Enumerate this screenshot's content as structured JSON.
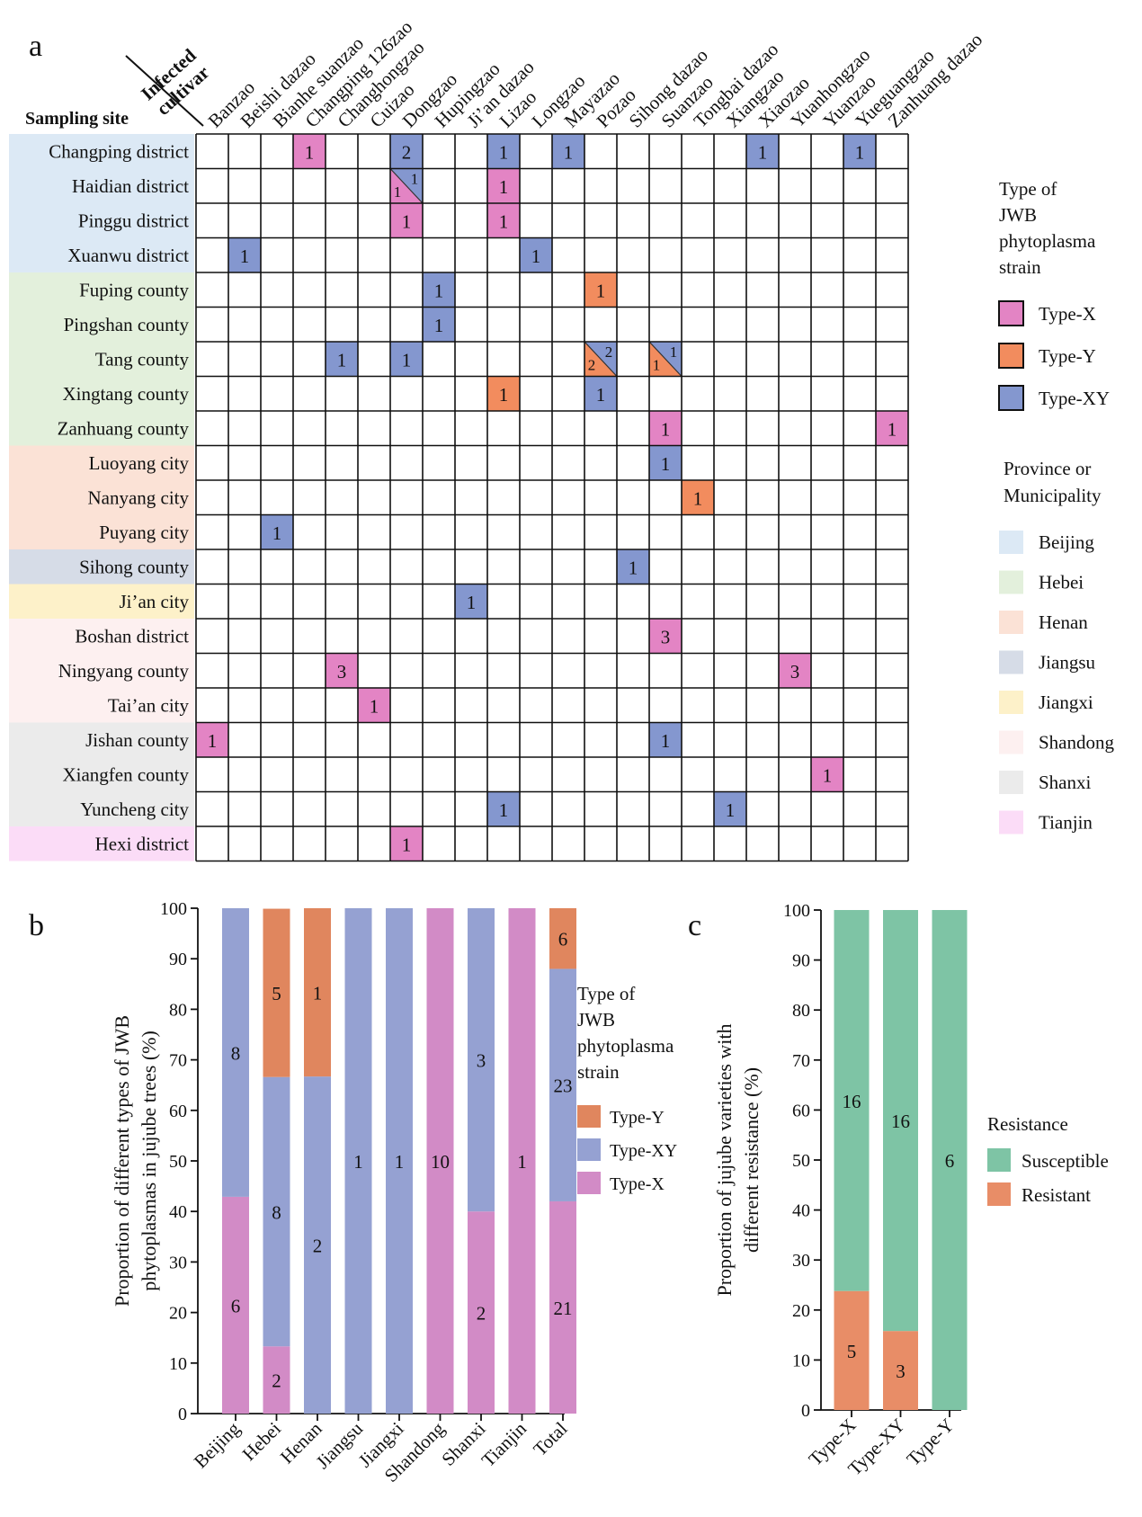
{
  "panel_labels": [
    "a",
    "b",
    "c"
  ],
  "colors": {
    "type_x": "#e384c4",
    "type_y": "#f28c5e",
    "type_xy": "#8497cf",
    "bar_x": "#d28bc6",
    "bar_y": "#e0865e",
    "bar_xy": "#95a1d2",
    "susceptible": "#7ec4a5",
    "resistant": "#e88d67"
  },
  "chart_data": [
    {
      "type": "heatmap",
      "panel": "a",
      "row_header": "Sampling site",
      "col_header": [
        "Infected",
        "cultivar"
      ],
      "columns": [
        "Banzao",
        "Beishi dazao",
        "Bianhe suanzao",
        "Changping 126zao",
        "Changhongzao",
        "Cuizao",
        "Dongzao",
        "Hupingzao",
        "Ji’an dazao",
        "Lizao",
        "Longzao",
        "Mayazao",
        "Pozao",
        "Sihong dazao",
        "Suanzao",
        "Tongbai dazao",
        "Xiangzao",
        "Xiaozao",
        "Yuanhongzao",
        "Yuanzao",
        "Yueguangzao",
        "Zanhuang dazao"
      ],
      "rows": [
        {
          "name": "Changping district",
          "group": "Beijing"
        },
        {
          "name": "Haidian district",
          "group": "Beijing"
        },
        {
          "name": "Pinggu district",
          "group": "Beijing"
        },
        {
          "name": "Xuanwu district",
          "group": "Beijing"
        },
        {
          "name": "Fuping county",
          "group": "Hebei"
        },
        {
          "name": "Pingshan county",
          "group": "Hebei"
        },
        {
          "name": "Tang county",
          "group": "Hebei"
        },
        {
          "name": "Xingtang county",
          "group": "Hebei"
        },
        {
          "name": "Zanhuang county",
          "group": "Hebei"
        },
        {
          "name": "Luoyang city",
          "group": "Henan"
        },
        {
          "name": "Nanyang city",
          "group": "Henan"
        },
        {
          "name": "Puyang city",
          "group": "Henan"
        },
        {
          "name": "Sihong county",
          "group": "Jiangsu"
        },
        {
          "name": "Ji’an city",
          "group": "Jiangxi"
        },
        {
          "name": "Boshan district",
          "group": "Shandong"
        },
        {
          "name": "Ningyang county",
          "group": "Shandong"
        },
        {
          "name": "Tai’an city",
          "group": "Shandong"
        },
        {
          "name": "Jishan county",
          "group": "Shanxi"
        },
        {
          "name": "Xiangfen county",
          "group": "Shanxi"
        },
        {
          "name": "Yuncheng city",
          "group": "Shanxi"
        },
        {
          "name": "Hexi district",
          "group": "Tianjin"
        }
      ],
      "cells": [
        {
          "row": 0,
          "col": 3,
          "type": "Type-X",
          "value": "1"
        },
        {
          "row": 0,
          "col": 6,
          "type": "Type-XY",
          "value": "2"
        },
        {
          "row": 0,
          "col": 9,
          "type": "Type-XY",
          "value": "1"
        },
        {
          "row": 0,
          "col": 11,
          "type": "Type-XY",
          "value": "1"
        },
        {
          "row": 0,
          "col": 17,
          "type": "Type-XY",
          "value": "1"
        },
        {
          "row": 0,
          "col": 20,
          "type": "Type-XY",
          "value": "1"
        },
        {
          "row": 1,
          "col": 6,
          "type": "split",
          "lower": "Type-X",
          "lower_value": "1",
          "upper": "Type-XY",
          "upper_value": "1"
        },
        {
          "row": 1,
          "col": 9,
          "type": "Type-X",
          "value": "1"
        },
        {
          "row": 2,
          "col": 6,
          "type": "Type-X",
          "value": "1"
        },
        {
          "row": 2,
          "col": 9,
          "type": "Type-X",
          "value": "1"
        },
        {
          "row": 3,
          "col": 1,
          "type": "Type-XY",
          "value": "1"
        },
        {
          "row": 3,
          "col": 10,
          "type": "Type-XY",
          "value": "1"
        },
        {
          "row": 4,
          "col": 7,
          "type": "Type-XY",
          "value": "1"
        },
        {
          "row": 4,
          "col": 12,
          "type": "Type-Y",
          "value": "1"
        },
        {
          "row": 5,
          "col": 7,
          "type": "Type-XY",
          "value": "1"
        },
        {
          "row": 6,
          "col": 4,
          "type": "Type-XY",
          "value": "1"
        },
        {
          "row": 6,
          "col": 6,
          "type": "Type-XY",
          "value": "1"
        },
        {
          "row": 6,
          "col": 12,
          "type": "split",
          "lower": "Type-Y",
          "lower_value": "2",
          "upper": "Type-XY",
          "upper_value": "2"
        },
        {
          "row": 6,
          "col": 14,
          "type": "split",
          "lower": "Type-Y",
          "lower_value": "1",
          "upper": "Type-XY",
          "upper_value": "1"
        },
        {
          "row": 7,
          "col": 9,
          "type": "Type-Y",
          "value": "1"
        },
        {
          "row": 7,
          "col": 12,
          "type": "Type-XY",
          "value": "1"
        },
        {
          "row": 8,
          "col": 14,
          "type": "Type-X",
          "value": "1"
        },
        {
          "row": 8,
          "col": 21,
          "type": "Type-X",
          "value": "1"
        },
        {
          "row": 9,
          "col": 14,
          "type": "Type-XY",
          "value": "1"
        },
        {
          "row": 10,
          "col": 15,
          "type": "Type-Y",
          "value": "1"
        },
        {
          "row": 11,
          "col": 2,
          "type": "Type-XY",
          "value": "1"
        },
        {
          "row": 12,
          "col": 13,
          "type": "Type-XY",
          "value": "1"
        },
        {
          "row": 13,
          "col": 8,
          "type": "Type-XY",
          "value": "1"
        },
        {
          "row": 14,
          "col": 14,
          "type": "Type-X",
          "value": "3"
        },
        {
          "row": 15,
          "col": 4,
          "type": "Type-X",
          "value": "3"
        },
        {
          "row": 15,
          "col": 18,
          "type": "Type-X",
          "value": "3"
        },
        {
          "row": 16,
          "col": 5,
          "type": "Type-X",
          "value": "1"
        },
        {
          "row": 17,
          "col": 0,
          "type": "Type-X",
          "value": "1"
        },
        {
          "row": 17,
          "col": 14,
          "type": "Type-XY",
          "value": "1"
        },
        {
          "row": 18,
          "col": 19,
          "type": "Type-X",
          "value": "1"
        },
        {
          "row": 19,
          "col": 9,
          "type": "Type-XY",
          "value": "1"
        },
        {
          "row": 19,
          "col": 16,
          "type": "Type-XY",
          "value": "1"
        },
        {
          "row": 20,
          "col": 6,
          "type": "Type-X",
          "value": "1"
        }
      ],
      "legend_type": {
        "title": [
          "Type of",
          "JWB",
          "phytoplasma",
          "strain"
        ],
        "entries": [
          "Type-X",
          "Type-Y",
          "Type-XY"
        ]
      },
      "legend_province": {
        "title": [
          "Province or",
          "Municipality"
        ],
        "entries": [
          {
            "name": "Beijing",
            "color": "#dce9f5"
          },
          {
            "name": "Hebei",
            "color": "#e3f0dc"
          },
          {
            "name": "Henan",
            "color": "#fbe2d6"
          },
          {
            "name": "Jiangsu",
            "color": "#d6dce7"
          },
          {
            "name": "Jiangxi",
            "color": "#fdf1c9"
          },
          {
            "name": "Shandong",
            "color": "#fdf0f0"
          },
          {
            "name": "Shanxi",
            "color": "#ebebeb"
          },
          {
            "name": "Tianjin",
            "color": "#fbdcf7"
          }
        ]
      }
    },
    {
      "type": "bar",
      "panel": "b",
      "stacked": true,
      "categories": [
        "Beijing",
        "Hebei",
        "Henan",
        "Jiangsu",
        "Jiangxi",
        "Shandong",
        "Shanxi",
        "Tianjin",
        "Total"
      ],
      "series": [
        {
          "name": "Type-X",
          "values": [
            42.9,
            13.3,
            0,
            0,
            0,
            100,
            40,
            100,
            42
          ],
          "labels": [
            "6",
            "2",
            "",
            "",
            "",
            "10",
            "2",
            "1",
            "21"
          ]
        },
        {
          "name": "Type-XY",
          "values": [
            57.1,
            53.3,
            66.7,
            100,
            100,
            0,
            60,
            0,
            46
          ],
          "labels": [
            "8",
            "8",
            "2",
            "1",
            "1",
            "",
            "3",
            "",
            "23"
          ]
        },
        {
          "name": "Type-Y",
          "values": [
            0,
            33.3,
            33.3,
            0,
            0,
            0,
            0,
            0,
            12
          ],
          "labels": [
            "",
            "5",
            "1",
            "",
            "",
            "",
            "",
            "",
            "6"
          ]
        }
      ],
      "ylabel": [
        "Proportion of different types of JWB",
        "phytoplasmas in jujube trees (%)"
      ],
      "ylim": [
        0,
        100
      ],
      "yticks": [
        0,
        10,
        20,
        30,
        40,
        50,
        60,
        70,
        80,
        90,
        100
      ],
      "legend_title": [
        "Type of",
        "JWB",
        "phytoplasma",
        "strain"
      ],
      "legend_entries": [
        "Type-Y",
        "Type-XY",
        "Type-X"
      ]
    },
    {
      "type": "bar",
      "panel": "c",
      "stacked": true,
      "categories": [
        "Type-X",
        "Type-XY",
        "Type-Y"
      ],
      "series": [
        {
          "name": "Resistant",
          "values": [
            23.8,
            15.8,
            0
          ],
          "labels": [
            "5",
            "3",
            ""
          ]
        },
        {
          "name": "Susceptible",
          "values": [
            76.2,
            84.2,
            100
          ],
          "labels": [
            "16",
            "16",
            "6"
          ]
        }
      ],
      "ylabel": [
        "Proportion of jujube varieties with",
        "different resistance (%)"
      ],
      "ylim": [
        0,
        100
      ],
      "yticks": [
        0,
        10,
        20,
        30,
        40,
        50,
        60,
        70,
        80,
        90,
        100
      ],
      "legend_title": "Resistance",
      "legend_entries": [
        "Susceptible",
        "Resistant"
      ]
    }
  ]
}
